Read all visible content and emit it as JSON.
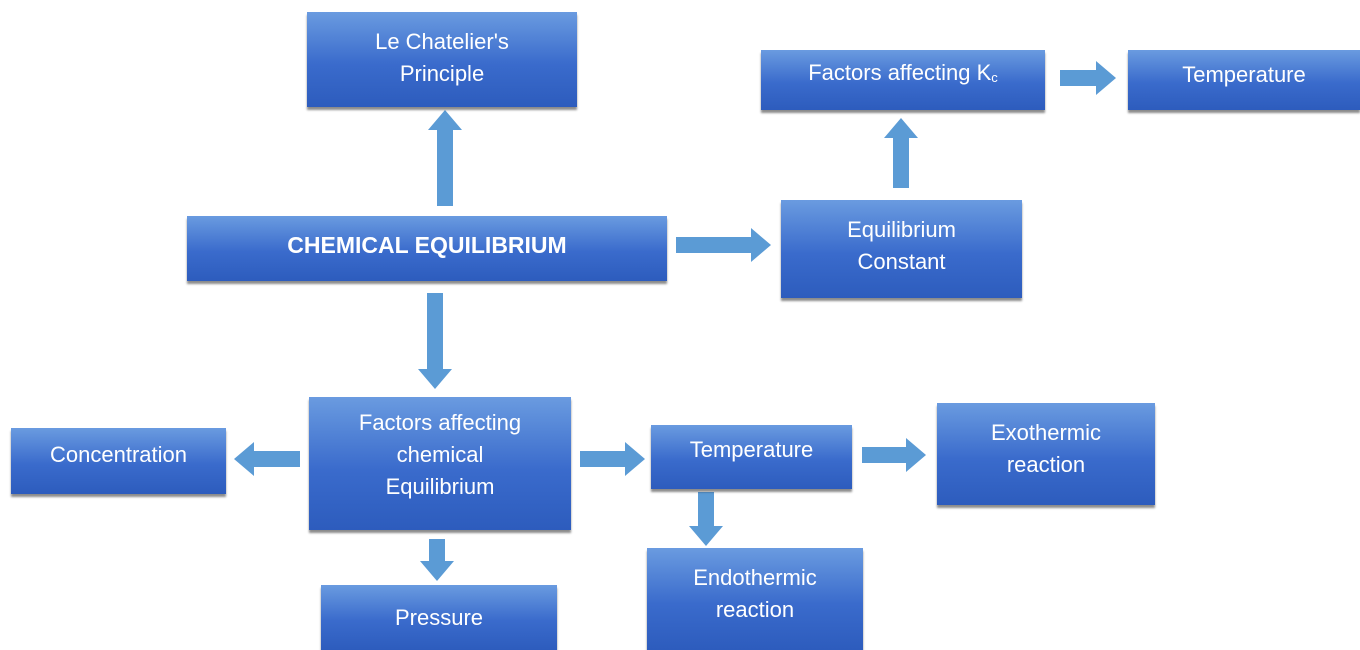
{
  "nodes": [
    {
      "lines": [
        "Le Chatelier's",
        "Principle"
      ]
    },
    {
      "lines": [
        "Factors affecting K"
      ],
      "subscript": "c"
    },
    {
      "lines": [
        "Temperature"
      ]
    },
    {
      "lines": [
        "CHEMICAL EQUILIBRIUM"
      ]
    },
    {
      "lines": [
        "Equilibrium",
        "Constant"
      ]
    },
    {
      "lines": [
        "Factors affecting",
        "chemical",
        "Equilibrium"
      ]
    },
    {
      "lines": [
        "Concentration"
      ]
    },
    {
      "lines": [
        "Temperature"
      ]
    },
    {
      "lines": [
        "Exothermic",
        "reaction"
      ]
    },
    {
      "lines": [
        "Endothermic",
        "reaction"
      ]
    },
    {
      "lines": [
        "Pressure"
      ]
    }
  ]
}
